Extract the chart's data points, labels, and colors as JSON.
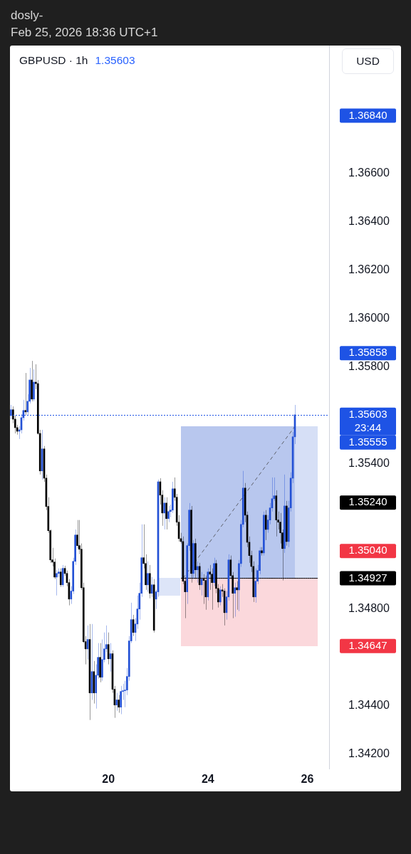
{
  "chart_data": {
    "type": "candlestick",
    "title": "GBPUSD · 1h",
    "subtitle": "1.35603",
    "ylabel": "USD",
    "annotations": [
      "dosly-",
      "Feb 25, 2026 18:36 UTC+1",
      "1.36840",
      "1.35858",
      "1.35555",
      "1.35240",
      "1.35040",
      "1.34927",
      "1.34647"
    ],
    "categories": [
      null,
      null,
      null,
      null,
      null,
      null,
      null,
      null,
      null,
      null,
      null,
      null,
      null,
      null,
      null,
      null,
      null,
      null,
      null,
      null,
      null,
      null,
      null,
      null,
      null,
      null,
      null,
      null,
      null,
      null,
      null,
      null,
      null,
      null,
      null,
      null,
      null,
      null,
      null,
      null,
      null,
      null,
      null,
      null,
      null,
      null,
      null,
      "20",
      null,
      null,
      null,
      null,
      null,
      null,
      null,
      null,
      null,
      null,
      null,
      null,
      null,
      null,
      null,
      null,
      null,
      null,
      null,
      null,
      null,
      null,
      null,
      null,
      null,
      null,
      null,
      null,
      null,
      null,
      null,
      null,
      null,
      null,
      null,
      null,
      null,
      null,
      null,
      null,
      null,
      null,
      null,
      null,
      null,
      null,
      null,
      "24",
      null,
      null,
      null,
      null,
      null,
      null,
      null,
      null,
      null,
      null,
      null,
      null,
      null,
      null,
      null,
      null,
      null,
      null,
      null,
      null,
      null,
      null,
      null,
      null,
      null,
      null,
      null,
      null,
      null,
      null,
      null,
      null,
      null,
      null,
      null,
      null,
      null,
      null,
      null,
      null,
      null,
      null,
      null,
      null,
      null,
      null,
      null,
      "26",
      null,
      null,
      null,
      null,
      null,
      null,
      null,
      null,
      null,
      null
    ],
    "ylim": [
      1.3414,
      1.3713
    ],
    "yticks": [
      {
        "value": 1.342,
        "label": "1.34200"
      },
      {
        "value": 1.344,
        "label": "1.34400"
      },
      {
        "value": 1.348,
        "label": "1.34800"
      },
      {
        "value": 1.354,
        "label": "1.35400"
      },
      {
        "value": 1.358,
        "label": "1.35800"
      },
      {
        "value": 1.36,
        "label": "1.36000"
      },
      {
        "value": 1.362,
        "label": "1.36200"
      },
      {
        "value": 1.364,
        "label": "1.36400"
      },
      {
        "value": 1.366,
        "label": "1.36600"
      }
    ],
    "series": [
      {
        "ohlc": [
          [
            1.356,
            1.35644,
            1.35585,
            1.35624
          ],
          [
            1.35624,
            1.35638,
            1.35568,
            1.35585
          ],
          [
            1.35585,
            1.356,
            1.35526,
            1.3555
          ],
          [
            1.3555,
            1.35562,
            1.35521,
            1.35535
          ],
          [
            1.35535,
            1.35556,
            1.35503,
            1.35541
          ],
          [
            1.35541,
            1.35606,
            1.35526,
            1.35591
          ],
          [
            1.35591,
            1.35665,
            1.35579,
            1.35621
          ],
          [
            1.35621,
            1.35776,
            1.35603,
            1.35615
          ],
          [
            1.35615,
            1.35688,
            1.35603,
            1.35659
          ],
          [
            1.35659,
            1.35797,
            1.3565,
            1.35747
          ],
          [
            1.35747,
            1.35826,
            1.35659,
            1.35668
          ],
          [
            1.35668,
            1.35791,
            1.35659,
            1.35738
          ],
          [
            1.35738,
            1.35812,
            1.35709,
            1.35732
          ],
          [
            1.35732,
            1.35747,
            1.35521,
            1.35526
          ],
          [
            1.35526,
            1.35541,
            1.35356,
            1.35371
          ],
          [
            1.35371,
            1.35541,
            1.35335,
            1.35462
          ],
          [
            1.35462,
            1.35474,
            1.35326,
            1.35341
          ],
          [
            1.35341,
            1.35356,
            1.35209,
            1.35224
          ],
          [
            1.35224,
            1.35262,
            1.35115,
            1.35124
          ],
          [
            1.35124,
            1.35129,
            1.34991,
            1.35003
          ],
          [
            1.35003,
            1.35053,
            1.34976,
            1.34994
          ],
          [
            1.34994,
            1.35009,
            1.34924,
            1.34932
          ],
          [
            1.34932,
            1.34962,
            1.34856,
            1.34947
          ],
          [
            1.34947,
            1.34968,
            1.34932,
            1.34953
          ],
          [
            1.34953,
            1.34968,
            1.34891,
            1.349
          ],
          [
            1.349,
            1.34982,
            1.34891,
            1.34968
          ],
          [
            1.34968,
            1.34979,
            1.34938,
            1.34947
          ],
          [
            1.34947,
            1.34959,
            1.34894,
            1.34909
          ],
          [
            1.34909,
            1.34924,
            1.34815,
            1.34841
          ],
          [
            1.34841,
            1.34894,
            1.34821,
            1.34874
          ],
          [
            1.34874,
            1.35012,
            1.34862,
            1.34997
          ],
          [
            1.34997,
            1.35129,
            1.34982,
            1.35106
          ],
          [
            1.35106,
            1.35168,
            1.3505,
            1.35062
          ],
          [
            1.35062,
            1.35168,
            1.35026,
            1.35047
          ],
          [
            1.35047,
            1.35071,
            1.34879,
            1.34888
          ],
          [
            1.34888,
            1.34909,
            1.34659,
            1.34665
          ],
          [
            1.34665,
            1.34688,
            1.34571,
            1.34635
          ],
          [
            1.34635,
            1.34732,
            1.34591,
            1.34674
          ],
          [
            1.34674,
            1.34738,
            1.34341,
            1.34453
          ],
          [
            1.34453,
            1.34738,
            1.34424,
            1.34541
          ],
          [
            1.34541,
            1.34585,
            1.34409,
            1.34453
          ],
          [
            1.34453,
            1.34571,
            1.34388,
            1.34526
          ],
          [
            1.34526,
            1.34659,
            1.34512,
            1.346
          ],
          [
            1.346,
            1.34659,
            1.34497,
            1.34518
          ],
          [
            1.34518,
            1.34674,
            1.34503,
            1.34591
          ],
          [
            1.34591,
            1.34703,
            1.34579,
            1.34635
          ],
          [
            1.34635,
            1.34732,
            1.34621,
            1.34653
          ],
          [
            1.34653,
            1.34703,
            1.34571,
            1.34594
          ],
          [
            1.34594,
            1.34659,
            1.34541,
            1.34615
          ],
          [
            1.34615,
            1.34629,
            1.34453,
            1.34468
          ],
          [
            1.34468,
            1.34482,
            1.3435,
            1.34403
          ],
          [
            1.34403,
            1.34453,
            1.34379,
            1.34424
          ],
          [
            1.34424,
            1.34444,
            1.34371,
            1.34394
          ],
          [
            1.34394,
            1.34482,
            1.34365,
            1.34459
          ],
          [
            1.34459,
            1.34491,
            1.34424,
            1.34462
          ],
          [
            1.34462,
            1.34503,
            1.34394,
            1.34465
          ],
          [
            1.34465,
            1.34556,
            1.34444,
            1.34521
          ],
          [
            1.34521,
            1.34688,
            1.34503,
            1.34668
          ],
          [
            1.34668,
            1.34826,
            1.34659,
            1.34756
          ],
          [
            1.34756,
            1.34776,
            1.34688,
            1.34703
          ],
          [
            1.34703,
            1.34762,
            1.34668,
            1.34738
          ],
          [
            1.34738,
            1.34856,
            1.34718,
            1.348
          ],
          [
            1.348,
            1.34909,
            1.34756,
            1.34865
          ],
          [
            1.34865,
            1.3515,
            1.3485,
            1.35012
          ],
          [
            1.35012,
            1.3515,
            1.34968,
            1.34988
          ],
          [
            1.34988,
            1.35026,
            1.34879,
            1.349
          ],
          [
            1.349,
            1.34997,
            1.34871,
            1.34947
          ],
          [
            1.34947,
            1.34982,
            1.34844,
            1.34865
          ],
          [
            1.34865,
            1.34932,
            1.3485,
            1.349
          ],
          [
            1.349,
            1.34924,
            1.34703,
            1.34712
          ],
          [
            1.34841,
            1.34879,
            1.348,
            1.34871
          ],
          [
            1.34871,
            1.35335,
            1.3485,
            1.35326
          ],
          [
            1.35326,
            1.35341,
            1.35232,
            1.35271
          ],
          [
            1.35271,
            1.35291,
            1.35144,
            1.35197
          ],
          [
            1.35197,
            1.35262,
            1.35129,
            1.35238
          ],
          [
            1.35238,
            1.35262,
            1.35129,
            1.35174
          ],
          [
            1.35174,
            1.35226,
            1.35159,
            1.35203
          ],
          [
            1.35203,
            1.35232,
            1.35179,
            1.35209
          ],
          [
            1.35209,
            1.35326,
            1.35197,
            1.35297
          ],
          [
            1.35297,
            1.35344,
            1.35247,
            1.35262
          ],
          [
            1.35262,
            1.35276,
            1.35144,
            1.35159
          ],
          [
            1.35159,
            1.35188,
            1.35079,
            1.35091
          ],
          [
            1.35091,
            1.35115,
            1.35071,
            1.35079
          ],
          [
            1.35079,
            1.351,
            1.34903,
            1.34915
          ],
          [
            1.34915,
            1.34932,
            1.34762,
            1.34871
          ],
          [
            1.34871,
            1.35071,
            1.34821,
            1.35062
          ],
          [
            1.35062,
            1.35238,
            1.35041,
            1.35209
          ],
          [
            1.35209,
            1.35226,
            1.34909,
            1.34947
          ],
          [
            1.34947,
            1.35085,
            1.34924,
            1.35071
          ],
          [
            1.35071,
            1.35091,
            1.34924,
            1.34962
          ],
          [
            1.34962,
            1.34997,
            1.34909,
            1.34976
          ],
          [
            1.34976,
            1.34991,
            1.34879,
            1.349
          ],
          [
            1.349,
            1.34953,
            1.34856,
            1.34924
          ],
          [
            1.34924,
            1.34944,
            1.34821,
            1.34918
          ],
          [
            1.34918,
            1.34938,
            1.34797,
            1.3485
          ],
          [
            1.3485,
            1.34968,
            1.34835,
            1.34953
          ],
          [
            1.34953,
            1.34982,
            1.34879,
            1.34944
          ],
          [
            1.34944,
            1.34968,
            1.34797,
            1.34909
          ],
          [
            1.34909,
            1.35012,
            1.34894,
            1.34988
          ],
          [
            1.34988,
            1.35003,
            1.34865,
            1.34885
          ],
          [
            1.34885,
            1.34903,
            1.34806,
            1.34829
          ],
          [
            1.34829,
            1.34894,
            1.34815,
            1.34879
          ],
          [
            1.34879,
            1.34903,
            1.3485,
            1.34874
          ],
          [
            1.34874,
            1.34885,
            1.34732,
            1.34785
          ],
          [
            1.34785,
            1.34874,
            1.34756,
            1.3485
          ],
          [
            1.3485,
            1.35026,
            1.34835,
            1.35003
          ],
          [
            1.35003,
            1.35021,
            1.34924,
            1.34938
          ],
          [
            1.34938,
            1.34953,
            1.34762,
            1.34865
          ],
          [
            1.34865,
            1.34909,
            1.34768,
            1.34888
          ],
          [
            1.34888,
            1.34915,
            1.34797,
            1.34879
          ],
          [
            1.34879,
            1.35003,
            1.34791,
            1.34988
          ],
          [
            1.34988,
            1.35168,
            1.34974,
            1.3515
          ],
          [
            1.3515,
            1.35371,
            1.35138,
            1.353
          ],
          [
            1.353,
            1.35321,
            1.35159,
            1.35188
          ],
          [
            1.35188,
            1.35203,
            1.35056,
            1.35076
          ],
          [
            1.35076,
            1.351,
            1.34991,
            1.35021
          ],
          [
            1.35021,
            1.35041,
            1.34953,
            1.34976
          ],
          [
            1.34976,
            1.34997,
            1.34829,
            1.3485
          ],
          [
            1.3485,
            1.34968,
            1.34826,
            1.34915
          ],
          [
            1.34915,
            1.34982,
            1.34903,
            1.34959
          ],
          [
            1.34959,
            1.35056,
            1.34944,
            1.35041
          ],
          [
            1.35041,
            1.35056,
            1.35021,
            1.35032
          ],
          [
            1.35032,
            1.35203,
            1.35021,
            1.35188
          ],
          [
            1.35188,
            1.35209,
            1.35085,
            1.35129
          ],
          [
            1.35129,
            1.35188,
            1.35115,
            1.35168
          ],
          [
            1.35168,
            1.35238,
            1.3515,
            1.35218
          ],
          [
            1.35218,
            1.35344,
            1.35203,
            1.35256
          ],
          [
            1.35256,
            1.35344,
            1.35247,
            1.35268
          ],
          [
            1.35268,
            1.35291,
            1.351,
            1.35168
          ],
          [
            1.35168,
            1.35203,
            1.35129,
            1.35159
          ],
          [
            1.35159,
            1.35197,
            1.35071,
            1.35115
          ],
          [
            1.35115,
            1.35129,
            1.34918,
            1.3505
          ],
          [
            1.3505,
            1.35356,
            1.35032,
            1.35226
          ],
          [
            1.35226,
            1.35247,
            1.35062,
            1.35079
          ],
          [
            1.35079,
            1.35247,
            1.35056,
            1.35218
          ],
          [
            1.35218,
            1.35365,
            1.35203,
            1.35341
          ],
          [
            1.35341,
            1.35532,
            1.35321,
            1.35512
          ],
          [
            1.35512,
            1.35644,
            1.35482,
            1.35603
          ],
          null,
          null,
          null,
          null,
          null,
          null,
          null,
          null,
          null,
          null,
          null,
          null,
          null,
          null,
          null,
          null
        ],
        "colors": [
          "#2250d5",
          "#000000",
          "#000000",
          "#000000",
          "#2250d5",
          "#2250d5",
          "#2250d5",
          "#000000",
          "#2250d5",
          "#2250d5",
          "#000000",
          "#2250d5",
          "#000000",
          "#000000",
          "#000000",
          "#2250d5",
          "#000000",
          "#000000",
          "#000000",
          "#000000",
          "#000000",
          "#000000",
          "#2250d5",
          "#2250d5",
          "#000000",
          "#2250d5",
          "#000000",
          "#000000",
          "#000000",
          "#2250d5",
          "#2250d5",
          "#2250d5",
          "#000000",
          "#000000",
          "#000000",
          "#000000",
          "#000000",
          "#2250d5",
          "#000000",
          "#2250d5",
          "#000000",
          "#2250d5",
          "#2250d5",
          "#000000",
          "#2250d5",
          "#2250d5",
          "#2250d5",
          "#000000",
          "#2250d5",
          "#000000",
          "#000000",
          "#2250d5",
          "#000000",
          "#2250d5",
          "#2250d5",
          "#2250d5",
          "#2250d5",
          "#2250d5",
          "#2250d5",
          "#000000",
          "#2250d5",
          "#2250d5",
          "#2250d5",
          "#2250d5",
          "#000000",
          "#000000",
          "#2250d5",
          "#000000",
          "#2250d5",
          "#000000",
          "#2250d5",
          "#2250d5",
          "#000000",
          "#000000",
          "#2250d5",
          "#000000",
          "#2250d5",
          "#2250d5",
          "#2250d5",
          "#000000",
          "#000000",
          "#000000",
          "#000000",
          "#000000",
          "#000000",
          "#2250d5",
          "#2250d5",
          "#000000",
          "#2250d5",
          "#000000",
          "#2250d5",
          "#000000",
          "#2250d5",
          "#000000",
          "#000000",
          "#2250d5",
          "#000000",
          "#000000",
          "#2250d5",
          "#000000",
          "#000000",
          "#2250d5",
          "#000000",
          "#000000",
          "#2250d5",
          "#2250d5",
          "#000000",
          "#000000",
          "#2250d5",
          "#000000",
          "#2250d5",
          "#2250d5",
          "#2250d5",
          "#000000",
          "#000000",
          "#000000",
          "#000000",
          "#000000",
          "#2250d5",
          "#2250d5",
          "#2250d5",
          "#000000",
          "#2250d5",
          "#000000",
          "#2250d5",
          "#2250d5",
          "#2250d5",
          "#2250d5",
          "#000000",
          "#000000",
          "#000000",
          "#000000",
          "#2250d5",
          "#000000",
          "#2250d5",
          "#2250d5",
          "#2250d5",
          "#2250d5",
          null,
          null,
          null,
          null,
          null,
          null,
          null,
          null,
          null,
          null,
          null,
          null,
          null,
          null,
          null,
          null
        ]
      },
      {
        "type": "line",
        "color": "#000000",
        "values": [
          null,
          null,
          null,
          null,
          null,
          null,
          null,
          null,
          null,
          null,
          null,
          null,
          null,
          null,
          null,
          null,
          null,
          null,
          null,
          null,
          null,
          null,
          null,
          null,
          null,
          null,
          null,
          null,
          null,
          null,
          null,
          null,
          null,
          null,
          null,
          null,
          null,
          null,
          null,
          null,
          null,
          null,
          null,
          null,
          null,
          null,
          null,
          null,
          null,
          null,
          null,
          null,
          null,
          null,
          null,
          null,
          null,
          null,
          null,
          null,
          null,
          null,
          null,
          null,
          null,
          null,
          null,
          null,
          null,
          null,
          null,
          null,
          null,
          null,
          null,
          null,
          null,
          null,
          null,
          null,
          null,
          null,
          1.34927,
          1.34927,
          1.34927,
          1.34927,
          1.34927,
          1.34927,
          1.34927,
          1.34927,
          1.34927,
          1.34927,
          1.34927,
          1.34927,
          1.34927,
          1.34927,
          1.34927,
          1.34927,
          1.34927,
          1.34927,
          1.34927,
          1.34927,
          1.34927,
          1.34927,
          1.34927,
          1.34927,
          1.34927,
          1.34927,
          1.34927,
          1.34927,
          1.34927,
          1.34927,
          1.34927,
          1.34927,
          1.34927,
          1.34927,
          1.34927,
          1.34927,
          1.34927,
          1.34927,
          1.34927,
          1.34927,
          1.34927,
          1.34927,
          1.34927,
          1.34927,
          1.34927,
          1.34927,
          1.34927,
          1.34927,
          1.34927,
          1.34927,
          1.34927,
          1.34927,
          1.34927,
          1.34927,
          1.34927,
          1.34927,
          1.34927,
          1.34927,
          1.34927,
          1.34927,
          1.34927,
          1.34927,
          1.34927,
          1.34927,
          1.34927,
          1.34927,
          1.34927,
          null,
          null,
          null,
          null,
          null
        ]
      },
      {
        "type": "line",
        "color": "#5d606b",
        "line_style": "dashed",
        "values": [
          null,
          null,
          null,
          null,
          null,
          null,
          null,
          null,
          null,
          null,
          null,
          null,
          null,
          null,
          null,
          null,
          null,
          null,
          null,
          null,
          null,
          null,
          null,
          null,
          null,
          null,
          null,
          null,
          null,
          null,
          null,
          null,
          null,
          null,
          null,
          null,
          null,
          null,
          null,
          null,
          null,
          null,
          null,
          null,
          null,
          null,
          null,
          null,
          null,
          null,
          null,
          null,
          null,
          null,
          null,
          null,
          null,
          null,
          null,
          null,
          null,
          null,
          null,
          null,
          null,
          null,
          null,
          null,
          null,
          null,
          null,
          null,
          null,
          null,
          null,
          null,
          null,
          null,
          null,
          null,
          null,
          null,
          null,
          1.34927,
          null,
          null,
          null,
          null,
          null,
          null,
          null,
          null,
          null,
          null,
          null,
          null,
          null,
          null,
          null,
          null,
          null,
          null,
          null,
          null,
          null,
          null,
          null,
          null,
          null,
          null,
          null,
          null,
          null,
          null,
          null,
          null,
          null,
          null,
          null,
          null,
          null,
          null,
          null,
          null,
          null,
          null,
          null,
          null,
          null,
          null,
          null,
          null,
          null,
          null,
          null,
          null,
          null,
          1.35555,
          null,
          null,
          null,
          null,
          null,
          null,
          null,
          null,
          null,
          null,
          null,
          null,
          null,
          null,
          null,
          null
        ]
      }
    ],
    "ref_lines": [
      {
        "axis": "y",
        "value": 1.35603,
        "label": "1.35603\n23:44",
        "color": "#1e53e5",
        "line_style": "dotted"
      }
    ]
  }
}
